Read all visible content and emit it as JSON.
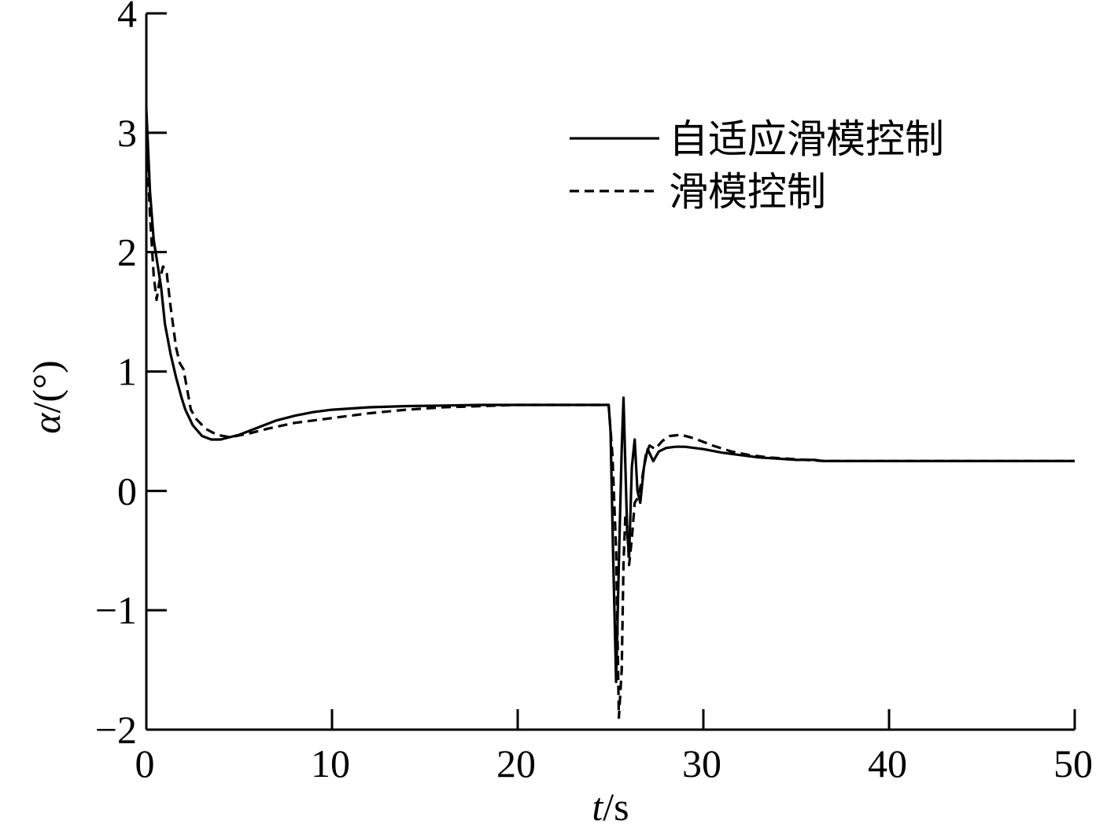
{
  "chart_data": {
    "type": "line",
    "title": "",
    "xlabel": {
      "var": "t",
      "unit": "/s"
    },
    "ylabel": {
      "var": "α",
      "unit": "/(°)"
    },
    "xlim": [
      0,
      50
    ],
    "ylim": [
      -2,
      4
    ],
    "xticks": [
      0,
      10,
      20,
      30,
      40,
      50
    ],
    "yticks": [
      -2,
      -1,
      0,
      1,
      2,
      3,
      4
    ],
    "ytick_labels": [
      "−2",
      "−1",
      "0",
      "1",
      "2",
      "3",
      "4"
    ],
    "grid": false,
    "legend_position": "top-right",
    "series": [
      {
        "name": "自适应滑模控制",
        "style": "solid",
        "color": "#000000",
        "points": [
          [
            0,
            3.2
          ],
          [
            0.2,
            2.5
          ],
          [
            0.4,
            2.1
          ],
          [
            0.6,
            1.9
          ],
          [
            0.8,
            1.7
          ],
          [
            1.0,
            1.4
          ],
          [
            1.3,
            1.15
          ],
          [
            1.6,
            0.95
          ],
          [
            1.9,
            0.78
          ],
          [
            2.1,
            0.68
          ],
          [
            2.5,
            0.55
          ],
          [
            3.0,
            0.46
          ],
          [
            3.5,
            0.43
          ],
          [
            4.0,
            0.43
          ],
          [
            5.0,
            0.47
          ],
          [
            6.0,
            0.53
          ],
          [
            7.0,
            0.59
          ],
          [
            8.0,
            0.63
          ],
          [
            9.0,
            0.66
          ],
          [
            10.0,
            0.68
          ],
          [
            12.0,
            0.7
          ],
          [
            14.0,
            0.71
          ],
          [
            16.0,
            0.715
          ],
          [
            18.0,
            0.72
          ],
          [
            20.0,
            0.72
          ],
          [
            22.0,
            0.72
          ],
          [
            24.0,
            0.72
          ],
          [
            24.9,
            0.72
          ],
          [
            25.0,
            0.5
          ],
          [
            25.15,
            -0.6
          ],
          [
            25.3,
            -1.6
          ],
          [
            25.45,
            -0.6
          ],
          [
            25.6,
            0.35
          ],
          [
            25.7,
            0.78
          ],
          [
            25.8,
            0.2
          ],
          [
            25.9,
            -0.35
          ],
          [
            26.0,
            -0.55
          ],
          [
            26.15,
            0.2
          ],
          [
            26.3,
            0.43
          ],
          [
            26.45,
            0.0
          ],
          [
            26.6,
            -0.1
          ],
          [
            26.8,
            0.2
          ],
          [
            27.0,
            0.35
          ],
          [
            27.3,
            0.25
          ],
          [
            27.6,
            0.33
          ],
          [
            28.0,
            0.36
          ],
          [
            28.5,
            0.37
          ],
          [
            29.0,
            0.37
          ],
          [
            30.0,
            0.35
          ],
          [
            31.0,
            0.32
          ],
          [
            32.0,
            0.3
          ],
          [
            33.0,
            0.28
          ],
          [
            34.0,
            0.27
          ],
          [
            35.0,
            0.26
          ],
          [
            36.0,
            0.26
          ],
          [
            36.5,
            0.25
          ],
          [
            40.0,
            0.25
          ],
          [
            45.0,
            0.25
          ],
          [
            50.0,
            0.25
          ]
        ]
      },
      {
        "name": "滑模控制",
        "style": "dashed",
        "color": "#000000",
        "points": [
          [
            0,
            3.0
          ],
          [
            0.2,
            2.3
          ],
          [
            0.4,
            1.8
          ],
          [
            0.55,
            1.6
          ],
          [
            0.7,
            1.75
          ],
          [
            0.9,
            1.88
          ],
          [
            1.1,
            1.82
          ],
          [
            1.3,
            1.55
          ],
          [
            1.6,
            1.2
          ],
          [
            1.8,
            1.07
          ],
          [
            2.0,
            1.02
          ],
          [
            2.2,
            0.85
          ],
          [
            2.4,
            0.68
          ],
          [
            2.7,
            0.6
          ],
          [
            3.2,
            0.52
          ],
          [
            3.8,
            0.47
          ],
          [
            4.5,
            0.45
          ],
          [
            5.5,
            0.48
          ],
          [
            6.5,
            0.52
          ],
          [
            8.0,
            0.57
          ],
          [
            10.0,
            0.61
          ],
          [
            12.0,
            0.65
          ],
          [
            14.0,
            0.68
          ],
          [
            16.0,
            0.7
          ],
          [
            18.0,
            0.71
          ],
          [
            20.0,
            0.72
          ],
          [
            22.0,
            0.72
          ],
          [
            24.0,
            0.72
          ],
          [
            24.9,
            0.72
          ],
          [
            25.1,
            0.3
          ],
          [
            25.3,
            -0.5
          ],
          [
            25.45,
            -1.9
          ],
          [
            25.6,
            -1.5
          ],
          [
            25.7,
            -0.6
          ],
          [
            25.8,
            -0.2
          ],
          [
            25.9,
            -0.3
          ],
          [
            26.0,
            -0.62
          ],
          [
            26.15,
            -0.4
          ],
          [
            26.3,
            -0.1
          ],
          [
            26.5,
            -0.05
          ],
          [
            26.7,
            0.1
          ],
          [
            26.9,
            0.3
          ],
          [
            27.1,
            0.38
          ],
          [
            27.4,
            0.35
          ],
          [
            27.8,
            0.42
          ],
          [
            28.2,
            0.46
          ],
          [
            28.8,
            0.47
          ],
          [
            29.5,
            0.44
          ],
          [
            30.5,
            0.38
          ],
          [
            31.5,
            0.33
          ],
          [
            32.5,
            0.3
          ],
          [
            33.5,
            0.28
          ],
          [
            34.5,
            0.27
          ],
          [
            35.5,
            0.26
          ],
          [
            36.5,
            0.25
          ],
          [
            40.0,
            0.25
          ],
          [
            45.0,
            0.25
          ],
          [
            50.0,
            0.25
          ]
        ]
      }
    ]
  }
}
